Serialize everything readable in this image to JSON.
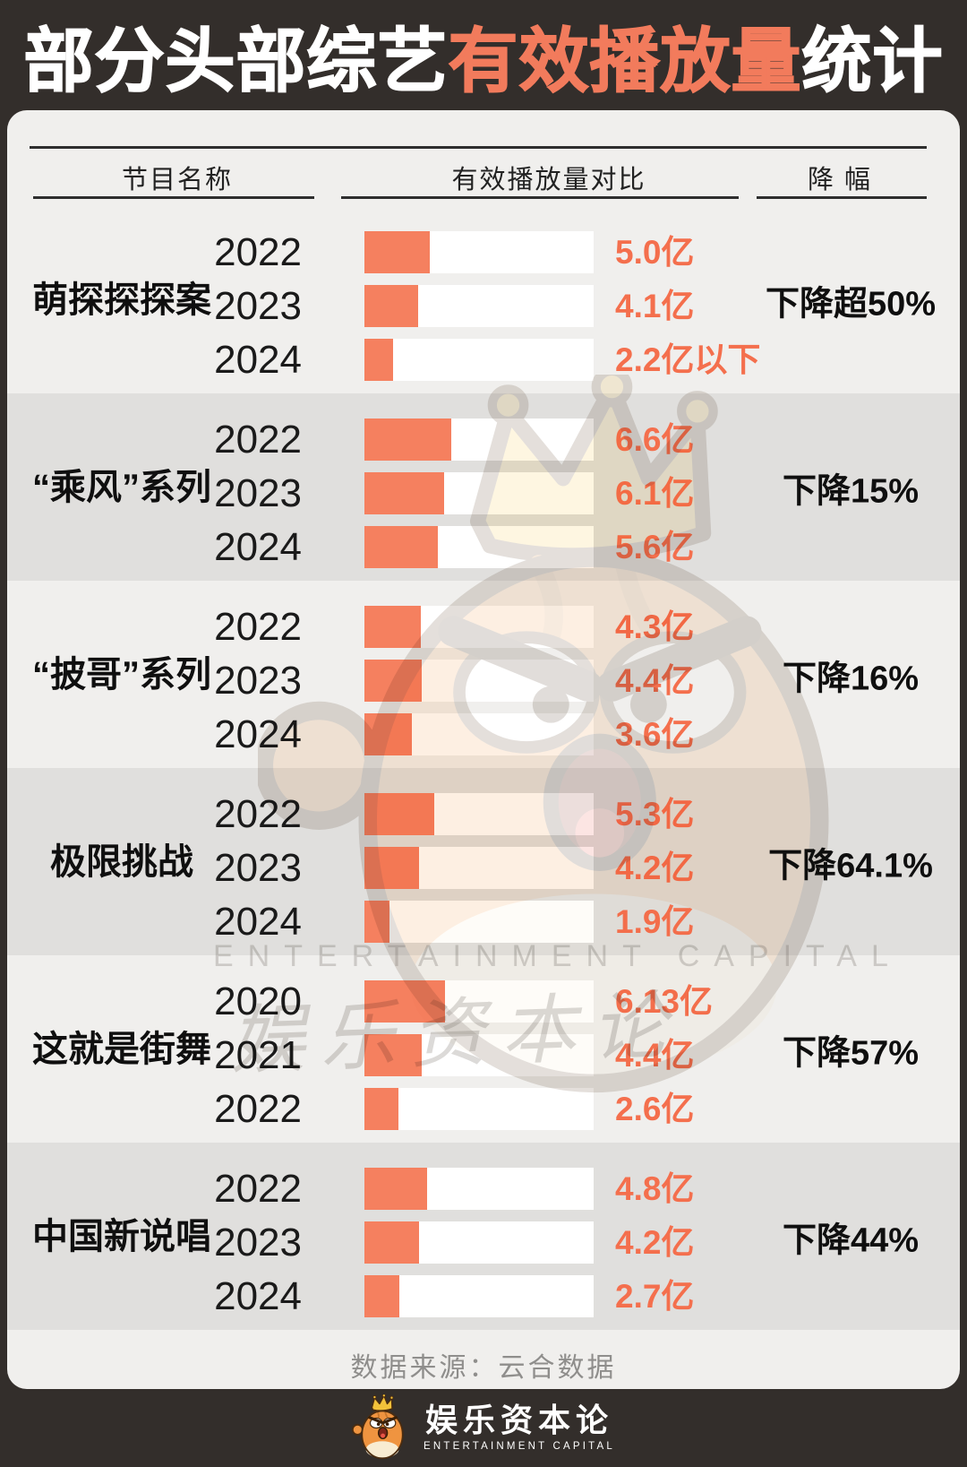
{
  "title": {
    "prefix": "部分头部综艺",
    "highlight": "有效播放量",
    "suffix": "统计"
  },
  "columns": {
    "name": "节目名称",
    "comparison": "有效播放量对比",
    "decline": "降 幅"
  },
  "chart_data": {
    "type": "bar",
    "title": "部分头部综艺有效播放量统计",
    "unit": "亿",
    "bar_axis_max": 17.5,
    "legend": "none",
    "grid": false,
    "groups": [
      {
        "program": "萌探探探案",
        "decline": "下降超50%",
        "bars": [
          {
            "year": "2022",
            "value": 5.0,
            "label": "5.0亿"
          },
          {
            "year": "2023",
            "value": 4.1,
            "label": "4.1亿"
          },
          {
            "year": "2024",
            "value": 2.2,
            "label": "2.2亿以下"
          }
        ]
      },
      {
        "program": "“乘风”系列",
        "decline": "下降15%",
        "bars": [
          {
            "year": "2022",
            "value": 6.6,
            "label": "6.6亿"
          },
          {
            "year": "2023",
            "value": 6.1,
            "label": "6.1亿"
          },
          {
            "year": "2024",
            "value": 5.6,
            "label": "5.6亿"
          }
        ]
      },
      {
        "program": "“披哥”系列",
        "decline": "下降16%",
        "bars": [
          {
            "year": "2022",
            "value": 4.3,
            "label": "4.3亿"
          },
          {
            "year": "2023",
            "value": 4.4,
            "label": "4.4亿"
          },
          {
            "year": "2024",
            "value": 3.6,
            "label": "3.6亿"
          }
        ]
      },
      {
        "program": "极限挑战",
        "decline": "下降64.1%",
        "bars": [
          {
            "year": "2022",
            "value": 5.3,
            "label": "5.3亿"
          },
          {
            "year": "2023",
            "value": 4.2,
            "label": "4.2亿"
          },
          {
            "year": "2024",
            "value": 1.9,
            "label": "1.9亿"
          }
        ]
      },
      {
        "program": "这就是街舞",
        "decline": "下降57%",
        "bars": [
          {
            "year": "2020",
            "value": 6.13,
            "label": "6.13亿"
          },
          {
            "year": "2021",
            "value": 4.4,
            "label": "4.4亿"
          },
          {
            "year": "2022",
            "value": 2.6,
            "label": "2.6亿"
          }
        ]
      },
      {
        "program": "中国新说唱",
        "decline": "下降44%",
        "bars": [
          {
            "year": "2022",
            "value": 4.8,
            "label": "4.8亿"
          },
          {
            "year": "2023",
            "value": 4.2,
            "label": "4.2亿"
          },
          {
            "year": "2024",
            "value": 2.7,
            "label": "2.7亿"
          }
        ]
      }
    ],
    "source": "数据来源：云合数据"
  },
  "footer": {
    "source": "数据来源：云合数据"
  },
  "logo": {
    "name": "娱乐资本论",
    "subtitle": "ENTERTAINMENT CAPITAL"
  },
  "watermark": {
    "cn": "娱乐资本论",
    "en": "ENTERTAINMENT CAPITAL"
  },
  "colors": {
    "background": "#332E2B",
    "panel": "#F0EFED",
    "band": "#E0DFDD",
    "accent": "#F27B5C",
    "bar": "#F5805F",
    "value_text": "#F46F4D"
  }
}
